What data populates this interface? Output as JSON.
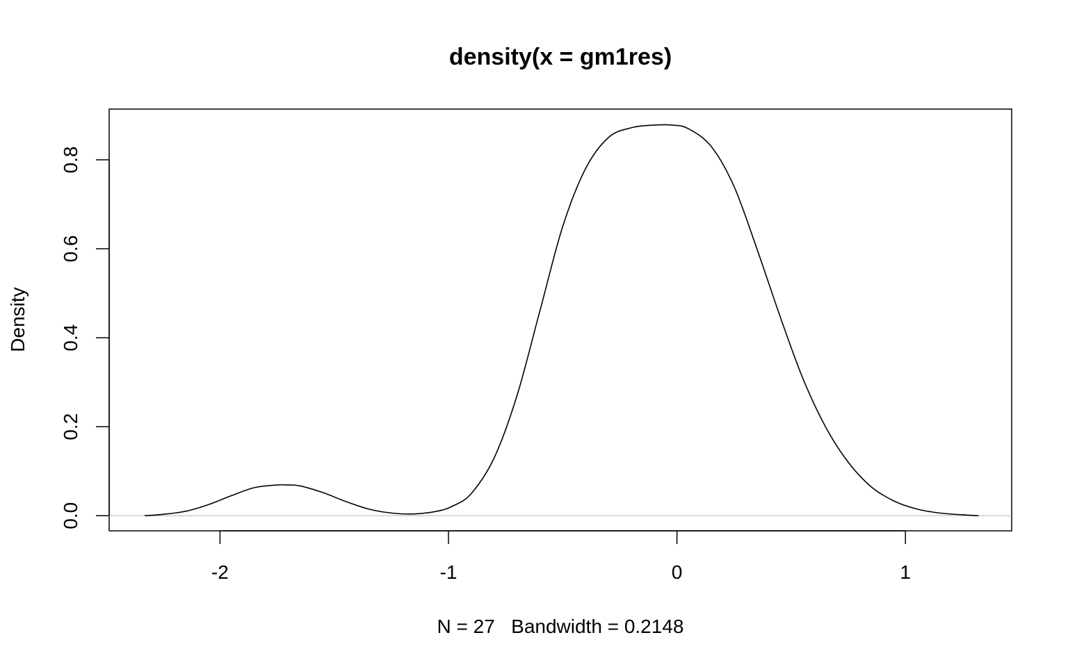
{
  "chart_data": {
    "type": "line",
    "title": "density(x = gm1res)",
    "xlabel": "N = 27   Bandwidth = 0.2148",
    "ylabel": "Density",
    "xlim": [
      -2.485,
      1.465
    ],
    "ylim": [
      -0.034,
      0.914
    ],
    "x_ticks": [
      -2,
      -1,
      0,
      1
    ],
    "x_tick_labels": [
      "-2",
      "-1",
      "0",
      "1"
    ],
    "y_ticks": [
      0.0,
      0.2,
      0.4,
      0.6,
      0.8
    ],
    "y_tick_labels": [
      "0.0",
      "0.2",
      "0.4",
      "0.6",
      "0.8"
    ],
    "baseline": 0,
    "baseline_color": "#c0c0c0",
    "line_color": "#000000",
    "grid": false,
    "series": [
      {
        "x": [
          -2.33,
          -2.25,
          -2.15,
          -2.05,
          -1.95,
          -1.85,
          -1.75,
          -1.7,
          -1.65,
          -1.55,
          -1.45,
          -1.35,
          -1.25,
          -1.15,
          -1.05,
          -0.98,
          -0.9,
          -0.8,
          -0.7,
          -0.6,
          -0.5,
          -0.4,
          -0.3,
          -0.2,
          -0.1,
          -0.02,
          0.05,
          0.15,
          0.25,
          0.35,
          0.45,
          0.55,
          0.65,
          0.75,
          0.85,
          0.95,
          1.05,
          1.15,
          1.25,
          1.32
        ],
        "y": [
          0.0,
          0.003,
          0.01,
          0.025,
          0.045,
          0.063,
          0.069,
          0.069,
          0.067,
          0.052,
          0.032,
          0.015,
          0.006,
          0.004,
          0.01,
          0.022,
          0.05,
          0.13,
          0.27,
          0.46,
          0.65,
          0.78,
          0.85,
          0.872,
          0.878,
          0.878,
          0.87,
          0.83,
          0.74,
          0.6,
          0.45,
          0.31,
          0.2,
          0.12,
          0.065,
          0.033,
          0.015,
          0.006,
          0.002,
          0.0
        ]
      }
    ]
  }
}
